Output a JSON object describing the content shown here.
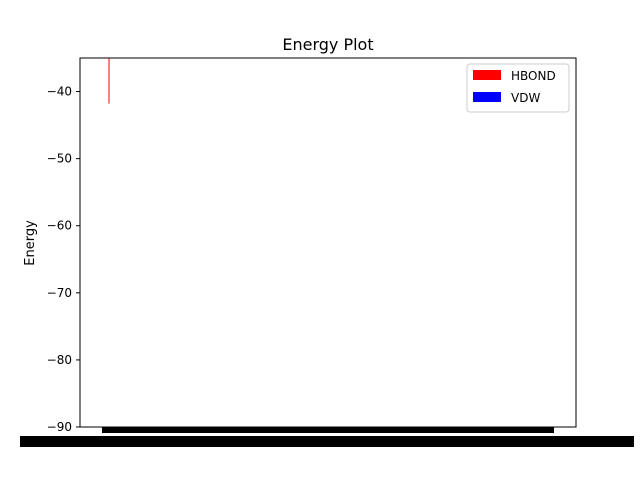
{
  "chart_data": {
    "type": "bar",
    "title": "Energy Plot",
    "xlabel": "",
    "ylabel": "Energy",
    "ylim": [
      -90,
      -35
    ],
    "yticks": [
      -40,
      -50,
      -60,
      -70,
      -80,
      -90
    ],
    "yticklabels": [
      "−40",
      "−50",
      "−60",
      "−70",
      "−80",
      "−90"
    ],
    "legend_position": "top-right",
    "grid": false,
    "series": [
      {
        "name": "HBOND",
        "color": "#ff0000",
        "values": [
          -41.8
        ]
      },
      {
        "name": "VDW",
        "color": "#0000ff",
        "values": []
      }
    ],
    "x_category_labels_overlapping": true
  }
}
